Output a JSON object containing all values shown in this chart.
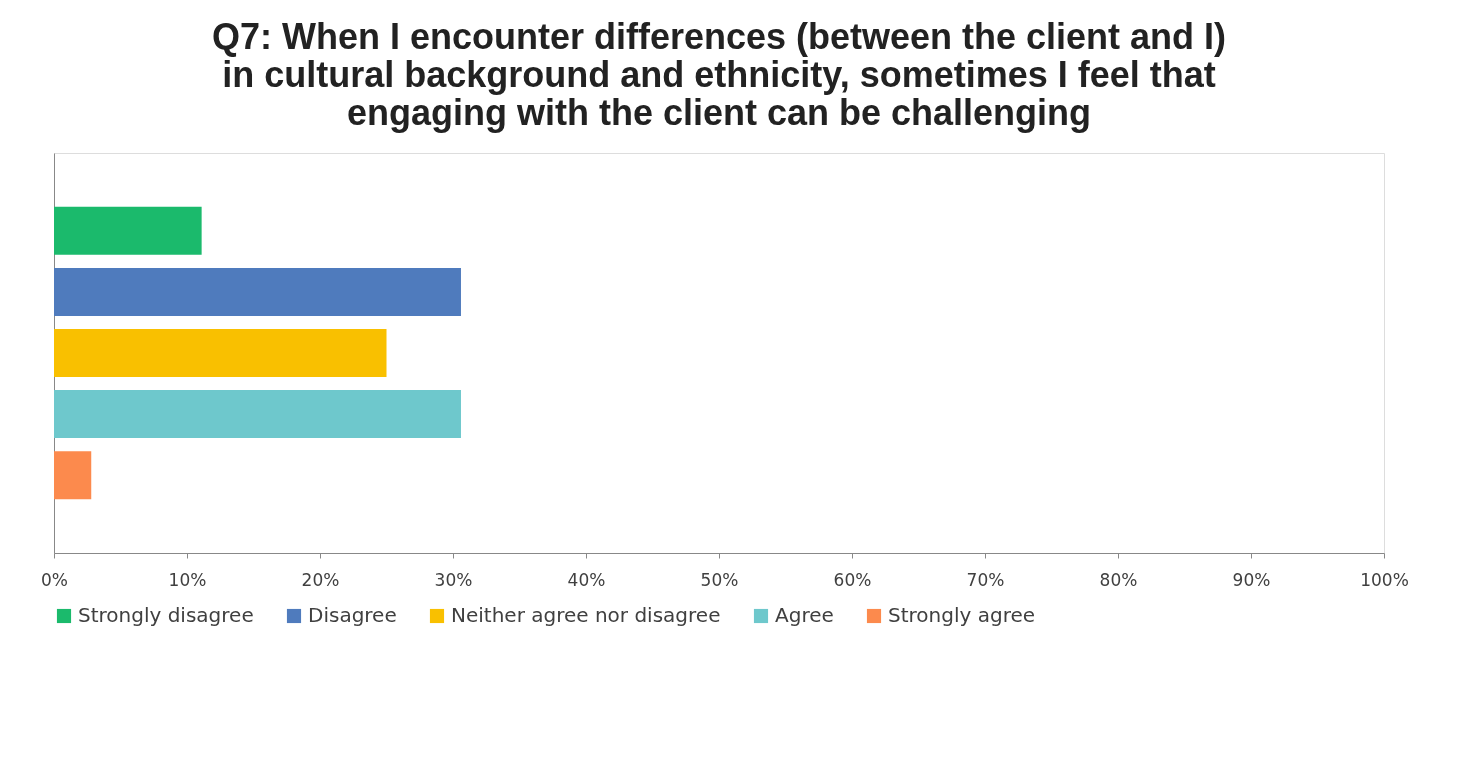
{
  "chart_data": {
    "type": "bar",
    "orientation": "horizontal",
    "title": [
      "Q7: When I encounter differences (between the client and I)",
      "in cultural background and ethnicity, sometimes I feel that",
      "engaging with the client can be challenging"
    ],
    "categories": [
      null
    ],
    "series": [
      {
        "name": "Strongly disagree",
        "color": "#1bba6c",
        "values": [
          11.1
        ]
      },
      {
        "name": "Disagree",
        "color": "#4f7bbd",
        "values": [
          30.6
        ]
      },
      {
        "name": "Neither agree nor disagree",
        "color": "#f9c000",
        "values": [
          25
        ]
      },
      {
        "name": "Agree",
        "color": "#6ec8cc",
        "values": [
          30.6
        ]
      },
      {
        "name": "Strongly agree",
        "color": "#fc8a4d",
        "values": [
          2.8
        ]
      }
    ],
    "xlim": [
      0,
      100
    ],
    "xticks": [
      {
        "value": 0,
        "label": "0%"
      },
      {
        "value": 10,
        "label": "10%"
      },
      {
        "value": 20,
        "label": "20%"
      },
      {
        "value": 30,
        "label": "30%"
      },
      {
        "value": 40,
        "label": "40%"
      },
      {
        "value": 50,
        "label": "50%"
      },
      {
        "value": 60,
        "label": "60%"
      },
      {
        "value": 70,
        "label": "70%"
      },
      {
        "value": 80,
        "label": "80%"
      },
      {
        "value": 90,
        "label": "90%"
      },
      {
        "value": 100,
        "label": "100%"
      }
    ],
    "grid": false,
    "legend": "bottom",
    "tick_labels": "x"
  }
}
